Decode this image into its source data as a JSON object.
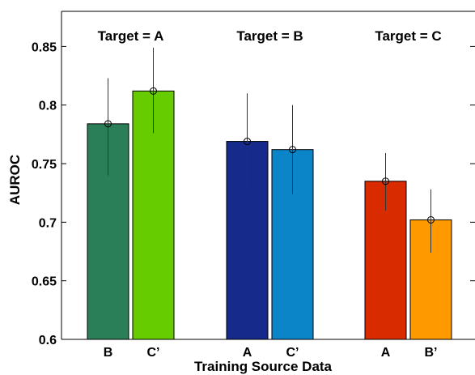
{
  "chart_data": {
    "type": "bar",
    "xlabel": "Training Source Data",
    "ylabel": "AUROC",
    "ylim": [
      0.6,
      0.88
    ],
    "yticks": [
      "0.6",
      "0.65",
      "0.7",
      "0.75",
      "0.8",
      "0.85"
    ],
    "grid": false,
    "groups": [
      {
        "title": "Target = A",
        "bars": [
          {
            "label": "B",
            "value": 0.784,
            "err_low": 0.74,
            "err_high": 0.823,
            "color": "#2a7f58"
          },
          {
            "label": "C’",
            "value": 0.812,
            "err_low": 0.776,
            "err_high": 0.849,
            "color": "#66cc00"
          }
        ]
      },
      {
        "title": "Target = B",
        "bars": [
          {
            "label": "A",
            "value": 0.769,
            "err_low": 0.73,
            "err_high": 0.81,
            "color": "#152a8a"
          },
          {
            "label": "C’",
            "value": 0.762,
            "err_low": 0.724,
            "err_high": 0.8,
            "color": "#0b84c8"
          }
        ]
      },
      {
        "title": "Target = C",
        "bars": [
          {
            "label": "A",
            "value": 0.735,
            "err_low": 0.71,
            "err_high": 0.759,
            "color": "#d92b00"
          },
          {
            "label": "B’",
            "value": 0.702,
            "err_low": 0.674,
            "err_high": 0.728,
            "color": "#ff9900"
          }
        ]
      }
    ]
  }
}
